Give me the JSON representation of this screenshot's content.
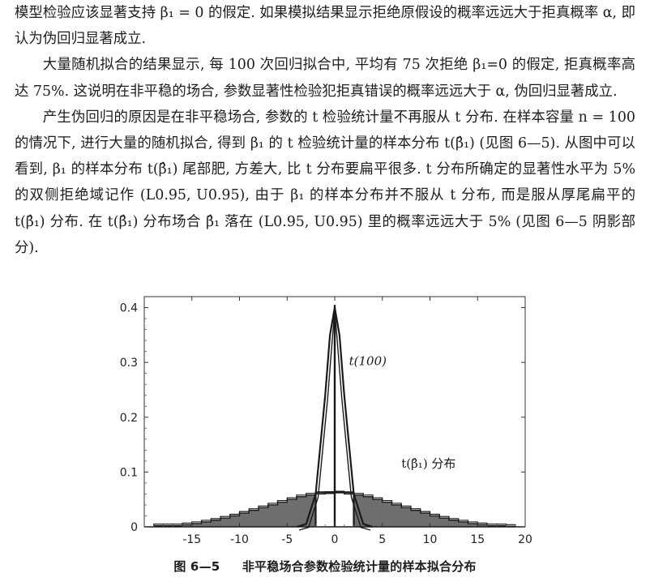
{
  "paragraphs": [
    "模型检验应该显著支持 β₁ = 0 的假定. 如果模拟结果显示拒绝原假设的概率远远大于拒真概率 α, 即认为伪回归显著成立.",
    "大量随机拟合的结果显示, 每 100 次回归拟合中, 平均有 75 次拒绝 β₁=0 的假定, 拒真概率高达 75%. 这说明在非平稳的场合, 参数显著性检验犯拒真错误的概率远远大于 α, 伪回归显著成立.",
    "产生伪回归的原因是在非平稳场合, 参数的 t 检验统计量不再服从 t 分布. 在样本容量 n = 100 的情况下, 进行大量的随机拟合, 得到 β₁ 的 t 检验统计量的样本分布 t(β̂₁) (见图 6—5). 从图中可以看到, β₁ 的样本分布 t(β̂₁) 尾部肥, 方差大, 比 t 分布要扁平很多. t 分布所确定的显著性水平为 5% 的双侧拒绝域记作 (L0.95, U0.95), 由于 β₁ 的样本分布并不服从 t 分布, 而是服从厚尾扁平的 t(β̂₁) 分布. 在 t(β̂₁) 分布场合 β̂₁ 落在 (L0.95, U0.95) 里的概率远远大于 5% (见图 6—5 阴影部分)."
  ],
  "figure": {
    "caption_number": "图 6—5",
    "caption_title": "非平稳场合参数检验统计量的样本拟合分布",
    "annotations": {
      "t100": "t(100)",
      "tbeta": "t(β̂₁) 分布"
    },
    "chart_data": {
      "type": "area",
      "xlim": [
        -20,
        20
      ],
      "ylim": [
        0,
        0.42
      ],
      "xticks": [
        -15,
        -10,
        -5,
        0,
        5,
        10,
        15,
        20
      ],
      "xtick_labels": [
        "-15",
        "-10",
        "-5",
        "0",
        "5",
        "10",
        "15",
        "20"
      ],
      "yticks": [
        0,
        0.1,
        0.2,
        0.3,
        0.4
      ],
      "ytick_labels": [
        "0",
        "0.1",
        "0.2",
        "0.3",
        "0.4"
      ],
      "rejection_interval": [
        -2,
        2
      ],
      "series": [
        {
          "label_key": "t100",
          "kind": "line",
          "x": [
            -4,
            -3,
            -2,
            -1,
            -0.5,
            0,
            0.5,
            1,
            2,
            3,
            4
          ],
          "y": [
            0.0,
            0.005,
            0.06,
            0.24,
            0.35,
            0.4,
            0.35,
            0.24,
            0.06,
            0.005,
            0.0
          ]
        },
        {
          "label_key": "tbeta",
          "kind": "step-histogram",
          "bin_edges": [
            -19,
            -16,
            -15,
            -14,
            -13,
            -12,
            -11,
            -10,
            -9,
            -8,
            -7,
            -6,
            -5,
            -4,
            -3,
            -2,
            -1,
            0,
            1,
            2,
            3,
            4,
            5,
            6,
            7,
            8,
            9,
            10,
            11,
            12,
            13,
            14,
            15,
            16,
            18,
            19
          ],
          "values": [
            0.002,
            0.004,
            0.006,
            0.009,
            0.012,
            0.016,
            0.02,
            0.025,
            0.03,
            0.035,
            0.04,
            0.045,
            0.05,
            0.055,
            0.058,
            0.06,
            0.061,
            0.062,
            0.06,
            0.058,
            0.055,
            0.05,
            0.045,
            0.04,
            0.035,
            0.03,
            0.025,
            0.02,
            0.016,
            0.012,
            0.009,
            0.006,
            0.004,
            0.002,
            0.001
          ],
          "shaded": true,
          "unshaded_interval": [
            -2,
            2
          ]
        }
      ]
    }
  }
}
